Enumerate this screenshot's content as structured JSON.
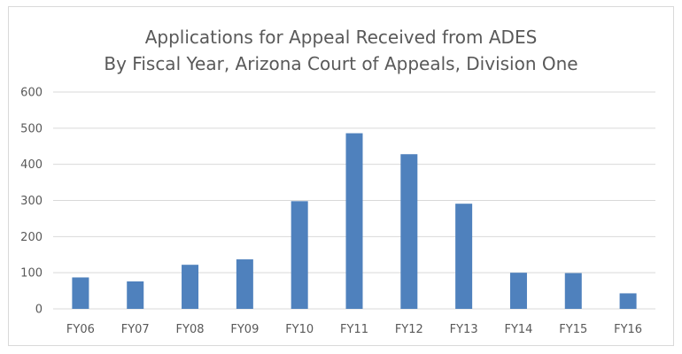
{
  "chart_data": {
    "type": "bar",
    "title": "Applications for Appeal Received from ADES",
    "subtitle": "By Fiscal Year, Arizona Court of Appeals, Division One",
    "xlabel": "",
    "ylabel": "",
    "categories": [
      "FY06",
      "FY07",
      "FY08",
      "FY09",
      "FY10",
      "FY11",
      "FY12",
      "FY13",
      "FY14",
      "FY15",
      "FY16"
    ],
    "values": [
      87,
      76,
      122,
      137,
      298,
      486,
      428,
      291,
      100,
      99,
      43
    ],
    "ylim": [
      0,
      600
    ],
    "yticks": [
      0,
      100,
      200,
      300,
      400,
      500,
      600
    ],
    "grid": true,
    "legend": "none",
    "bar_color": "#4f81bd",
    "grid_color": "#d9d9d9"
  }
}
